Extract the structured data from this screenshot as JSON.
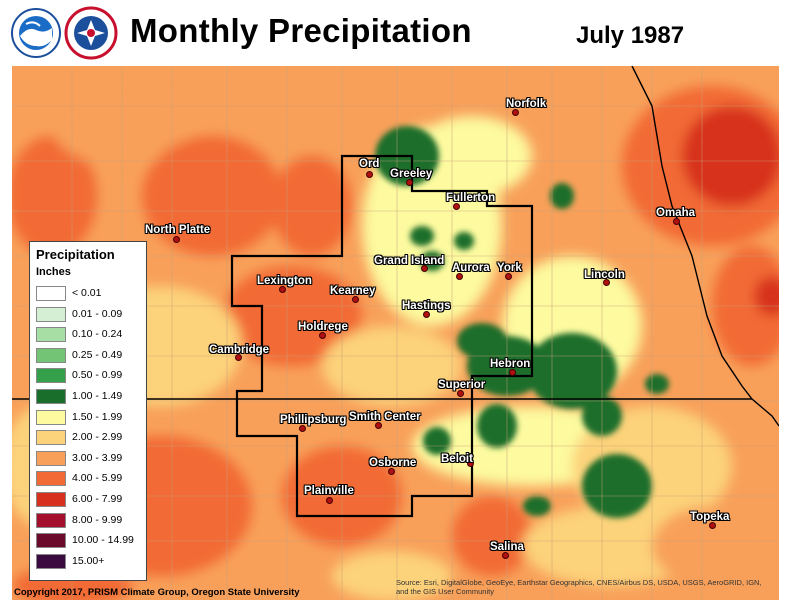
{
  "title": "Monthly Precipitation",
  "date": "July 1987",
  "logos": {
    "noaa": "noaa-logo",
    "nws": "nws-logo"
  },
  "legend": {
    "title": "Precipitation",
    "units": "Inches",
    "items": [
      {
        "label": "< 0.01",
        "color": "#ffffff"
      },
      {
        "label": "0.01 - 0.09",
        "color": "#d4efd3"
      },
      {
        "label": "0.10 - 0.24",
        "color": "#a7dea4"
      },
      {
        "label": "0.25 - 0.49",
        "color": "#74c476"
      },
      {
        "label": "0.50 - 0.99",
        "color": "#34a04a"
      },
      {
        "label": "1.00 - 1.49",
        "color": "#1a6e2b"
      },
      {
        "label": "1.50 - 1.99",
        "color": "#fdfa9f"
      },
      {
        "label": "2.00 - 2.99",
        "color": "#fcd27a"
      },
      {
        "label": "3.00 - 3.99",
        "color": "#f8a05a"
      },
      {
        "label": "4.00 - 5.99",
        "color": "#f26a35"
      },
      {
        "label": "6.00 - 7.99",
        "color": "#d7301f"
      },
      {
        "label": "8.00 - 9.99",
        "color": "#a50f2e"
      },
      {
        "label": "10.00 - 14.99",
        "color": "#6b0a2a"
      },
      {
        "label": "15.00+",
        "color": "#3b0a3e"
      }
    ]
  },
  "cities": [
    {
      "name": "Norfolk"
    },
    {
      "name": "Ord"
    },
    {
      "name": "Greeley"
    },
    {
      "name": "Fullerton"
    },
    {
      "name": "Omaha"
    },
    {
      "name": "North Platte"
    },
    {
      "name": "Grand Island"
    },
    {
      "name": "Aurora"
    },
    {
      "name": "York"
    },
    {
      "name": "Lincoln"
    },
    {
      "name": "Lexington"
    },
    {
      "name": "Kearney"
    },
    {
      "name": "Hastings"
    },
    {
      "name": "Holdrege"
    },
    {
      "name": "Cambridge"
    },
    {
      "name": "Hebron"
    },
    {
      "name": "Superior"
    },
    {
      "name": "Phillipsburg"
    },
    {
      "name": "Smith Center"
    },
    {
      "name": "Beloit"
    },
    {
      "name": "Osborne"
    },
    {
      "name": "Plainville"
    },
    {
      "name": "Topeka"
    },
    {
      "name": "Salina"
    }
  ],
  "copyright": "Copyright 2017, PRISM Climate Group, Oregon State University",
  "credits": "Source: Esri, DigitalGlobe, GeoEye, Earthstar Geographics, CNES/Airbus DS, USDA, USGS, AeroGRID, IGN, and the GIS User Community"
}
